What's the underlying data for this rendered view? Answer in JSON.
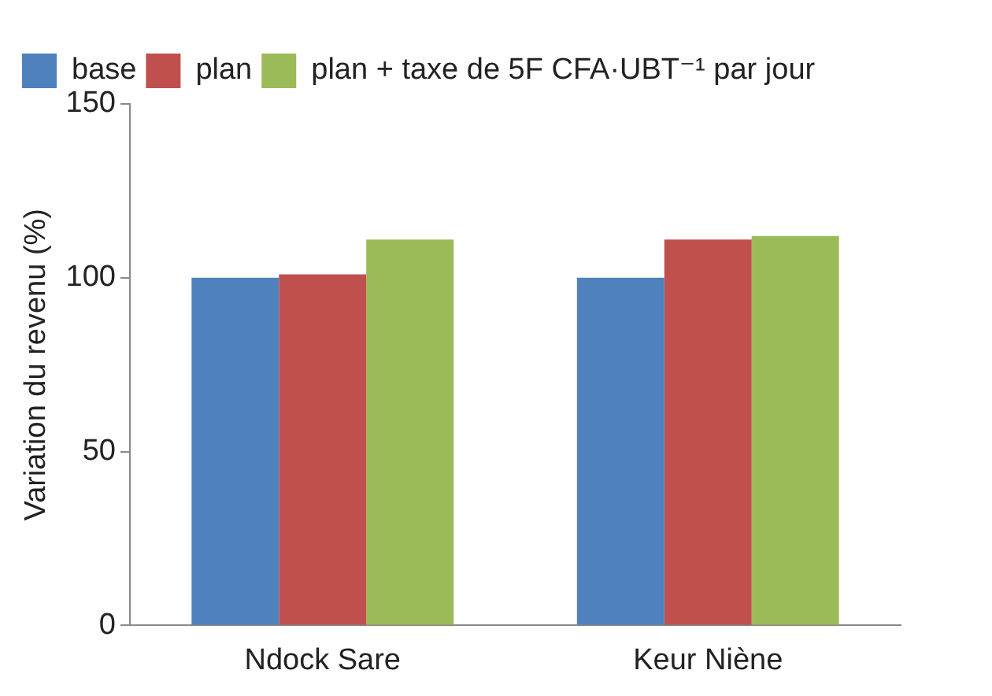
{
  "chart_data": {
    "type": "bar",
    "ylabel": "Variation du revenu (%)",
    "categories": [
      "Ndock Sare",
      "Keur Niène"
    ],
    "series": [
      {
        "name": "base",
        "color": "#4f81bd",
        "values": [
          100,
          100
        ]
      },
      {
        "name": "plan",
        "color": "#c0504d",
        "values": [
          101,
          111
        ]
      },
      {
        "name": "plan + taxe de 5F CFA·UBT⁻¹ par jour",
        "color": "#9bbb59",
        "values": [
          111,
          112
        ]
      }
    ],
    "ylim": [
      0,
      150
    ],
    "yticks": [
      0,
      50,
      100,
      150
    ],
    "grid": false,
    "legend": "top left"
  }
}
